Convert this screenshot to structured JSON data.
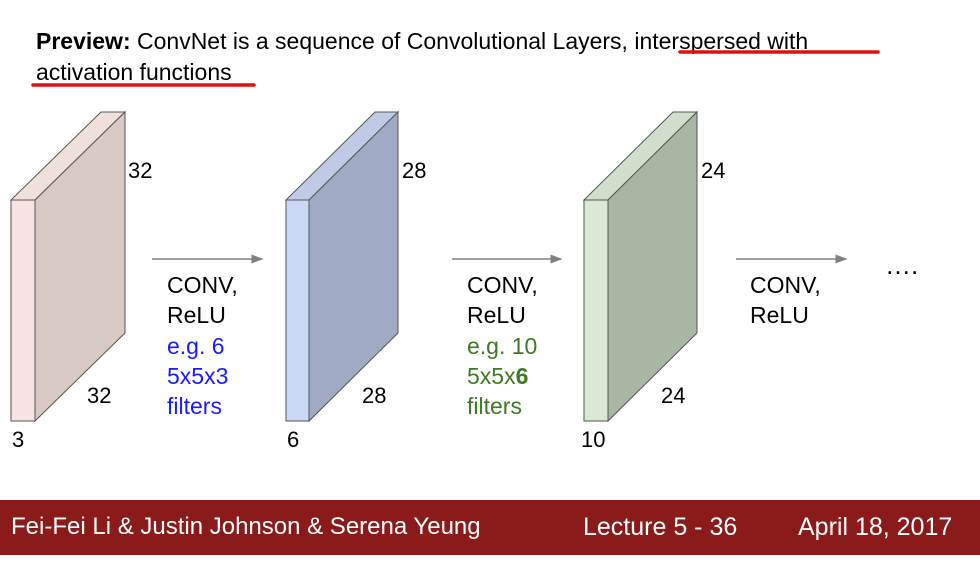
{
  "headline": {
    "prefix": "Preview:",
    "text_plain": " ConvNet is a sequence of Convolutional Layers,",
    "text_underlined_1": " interspersed with",
    "text_underlined_2": "activation functions",
    "underline_color": "#dd1111"
  },
  "volumes": [
    {
      "height_label": "32",
      "width_label": "32",
      "depth_label": "3",
      "front_color": "#f6e4e4",
      "side_color": "#d9c9c5",
      "top_color": "#efe0dc"
    },
    {
      "height_label": "28",
      "width_label": "28",
      "depth_label": "6",
      "front_color": "#c9d8f4",
      "side_color": "#a0aac4",
      "top_color": "#bfcbe6"
    },
    {
      "height_label": "24",
      "width_label": "24",
      "depth_label": "10",
      "front_color": "#d9e9d3",
      "side_color": "#a7b7a3",
      "top_color": "#cfdfc9"
    }
  ],
  "steps": [
    {
      "op_line1": "CONV,",
      "op_line2": "ReLU",
      "ex_line1": "e.g. 6",
      "ex_line2_pre": "5x5x3",
      "ex_line2_bold": "",
      "ex_line3": "filters",
      "ex_color": "#1a1aff"
    },
    {
      "op_line1": "CONV,",
      "op_line2": "ReLU",
      "ex_line1": "e.g. 10",
      "ex_line2_pre": "5x5x",
      "ex_line2_bold": "6",
      "ex_line3": "filters",
      "ex_color": "#3d7a22"
    },
    {
      "op_line1": "CONV,",
      "op_line2": "ReLU"
    }
  ],
  "ellipsis": "….",
  "footer": {
    "authors": "Fei-Fei Li & Justin Johnson & Serena Yeung",
    "lecture": "Lecture 5 - 36",
    "date": "April 18, 2017",
    "bg_color": "#8b1a1a"
  }
}
